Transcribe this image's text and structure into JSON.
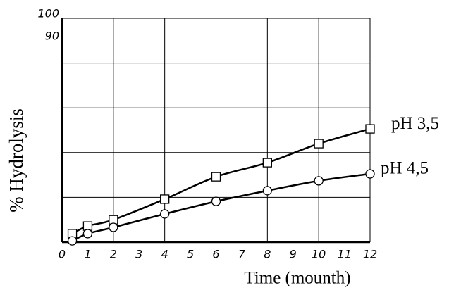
{
  "chart_data": {
    "type": "line",
    "x_label": "Time (mounth)",
    "y_label": "% Hydrolysis",
    "xlim": [
      0,
      12
    ],
    "ylim": [
      0,
      100
    ],
    "xticks": [
      0,
      1,
      2,
      3,
      4,
      5,
      6,
      7,
      8,
      9,
      10,
      11,
      12
    ],
    "xgrid": [
      0,
      2,
      4,
      6,
      8,
      10,
      12
    ],
    "yticks": [
      100,
      90
    ],
    "ygrid": [
      0,
      20,
      40,
      60,
      80,
      100
    ],
    "x": [
      0.4,
      1,
      2,
      4,
      6,
      8,
      10,
      12
    ],
    "series": [
      {
        "name": "pH 3,5",
        "color": "#000000",
        "marker": "square",
        "values": [
          3.8,
          7.2,
          10,
          19.2,
          29.2,
          35.5,
          44,
          50.6
        ]
      },
      {
        "name": "pH 4,5",
        "color": "#000000",
        "marker": "circle",
        "values": [
          0.6,
          3.8,
          6.6,
          12.6,
          18.2,
          23,
          27.4,
          30.5
        ]
      }
    ]
  }
}
